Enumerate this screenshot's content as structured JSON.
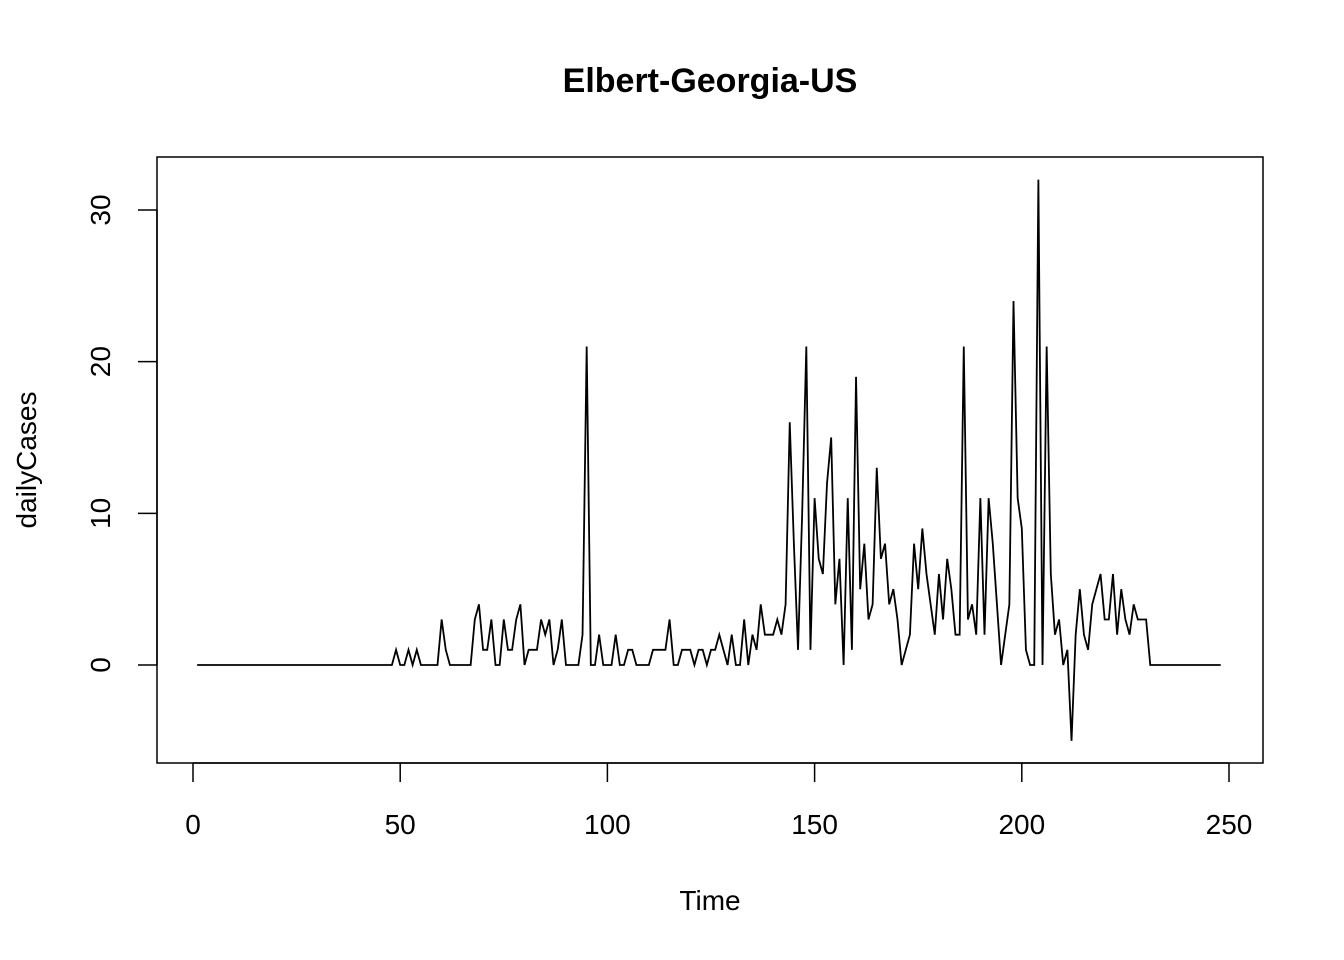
{
  "chart_data": {
    "type": "line",
    "title": "Elbert-Georgia-US",
    "xlabel": "Time",
    "ylabel": "dailyCases",
    "xlim": [
      1,
      248
    ],
    "ylim": [
      -5,
      32
    ],
    "xticks": [
      0,
      50,
      100,
      150,
      200,
      250
    ],
    "yticks": [
      0,
      10,
      20,
      30
    ],
    "grid": false,
    "series": [
      {
        "x_start": 1,
        "values": [
          0,
          0,
          0,
          0,
          0,
          0,
          0,
          0,
          0,
          0,
          0,
          0,
          0,
          0,
          0,
          0,
          0,
          0,
          0,
          0,
          0,
          0,
          0,
          0,
          0,
          0,
          0,
          0,
          0,
          0,
          0,
          0,
          0,
          0,
          0,
          0,
          0,
          0,
          0,
          0,
          0,
          0,
          0,
          0,
          0,
          0,
          0,
          0,
          1,
          0,
          0,
          1,
          0,
          1,
          0,
          0,
          0,
          0,
          0,
          3,
          1,
          0,
          0,
          0,
          0,
          0,
          0,
          3,
          4,
          1,
          1,
          3,
          0,
          0,
          3,
          1,
          1,
          3,
          4,
          0,
          1,
          1,
          1,
          3,
          2,
          3,
          0,
          1,
          3,
          0,
          0,
          0,
          0,
          2,
          21,
          0,
          0,
          2,
          0,
          0,
          0,
          2,
          0,
          0,
          1,
          1,
          0,
          0,
          0,
          0,
          1,
          1,
          1,
          1,
          3,
          0,
          0,
          1,
          1,
          1,
          0,
          1,
          1,
          0,
          1,
          1,
          2,
          1,
          0,
          2,
          0,
          0,
          3,
          0,
          2,
          1,
          4,
          2,
          2,
          2,
          3,
          2,
          4,
          16,
          8,
          1,
          10,
          21,
          1,
          11,
          7,
          6,
          12,
          15,
          4,
          7,
          0,
          11,
          1,
          19,
          5,
          8,
          3,
          4,
          13,
          7,
          8,
          4,
          5,
          3,
          0,
          1,
          2,
          8,
          5,
          9,
          6,
          4,
          2,
          6,
          3,
          7,
          5,
          2,
          2,
          21,
          3,
          4,
          2,
          11,
          2,
          11,
          8,
          4,
          0,
          2,
          4,
          24,
          11,
          9,
          1,
          0,
          0,
          32,
          0,
          21,
          6,
          2,
          3,
          0,
          1,
          -5,
          2,
          5,
          2,
          1,
          4,
          5,
          6,
          3,
          3,
          6,
          2,
          5,
          3,
          2,
          4,
          3,
          3,
          3,
          0,
          0,
          0,
          0,
          0,
          0,
          0,
          0,
          0,
          0,
          0,
          0,
          0,
          0,
          0,
          0,
          0,
          0
        ]
      }
    ]
  }
}
